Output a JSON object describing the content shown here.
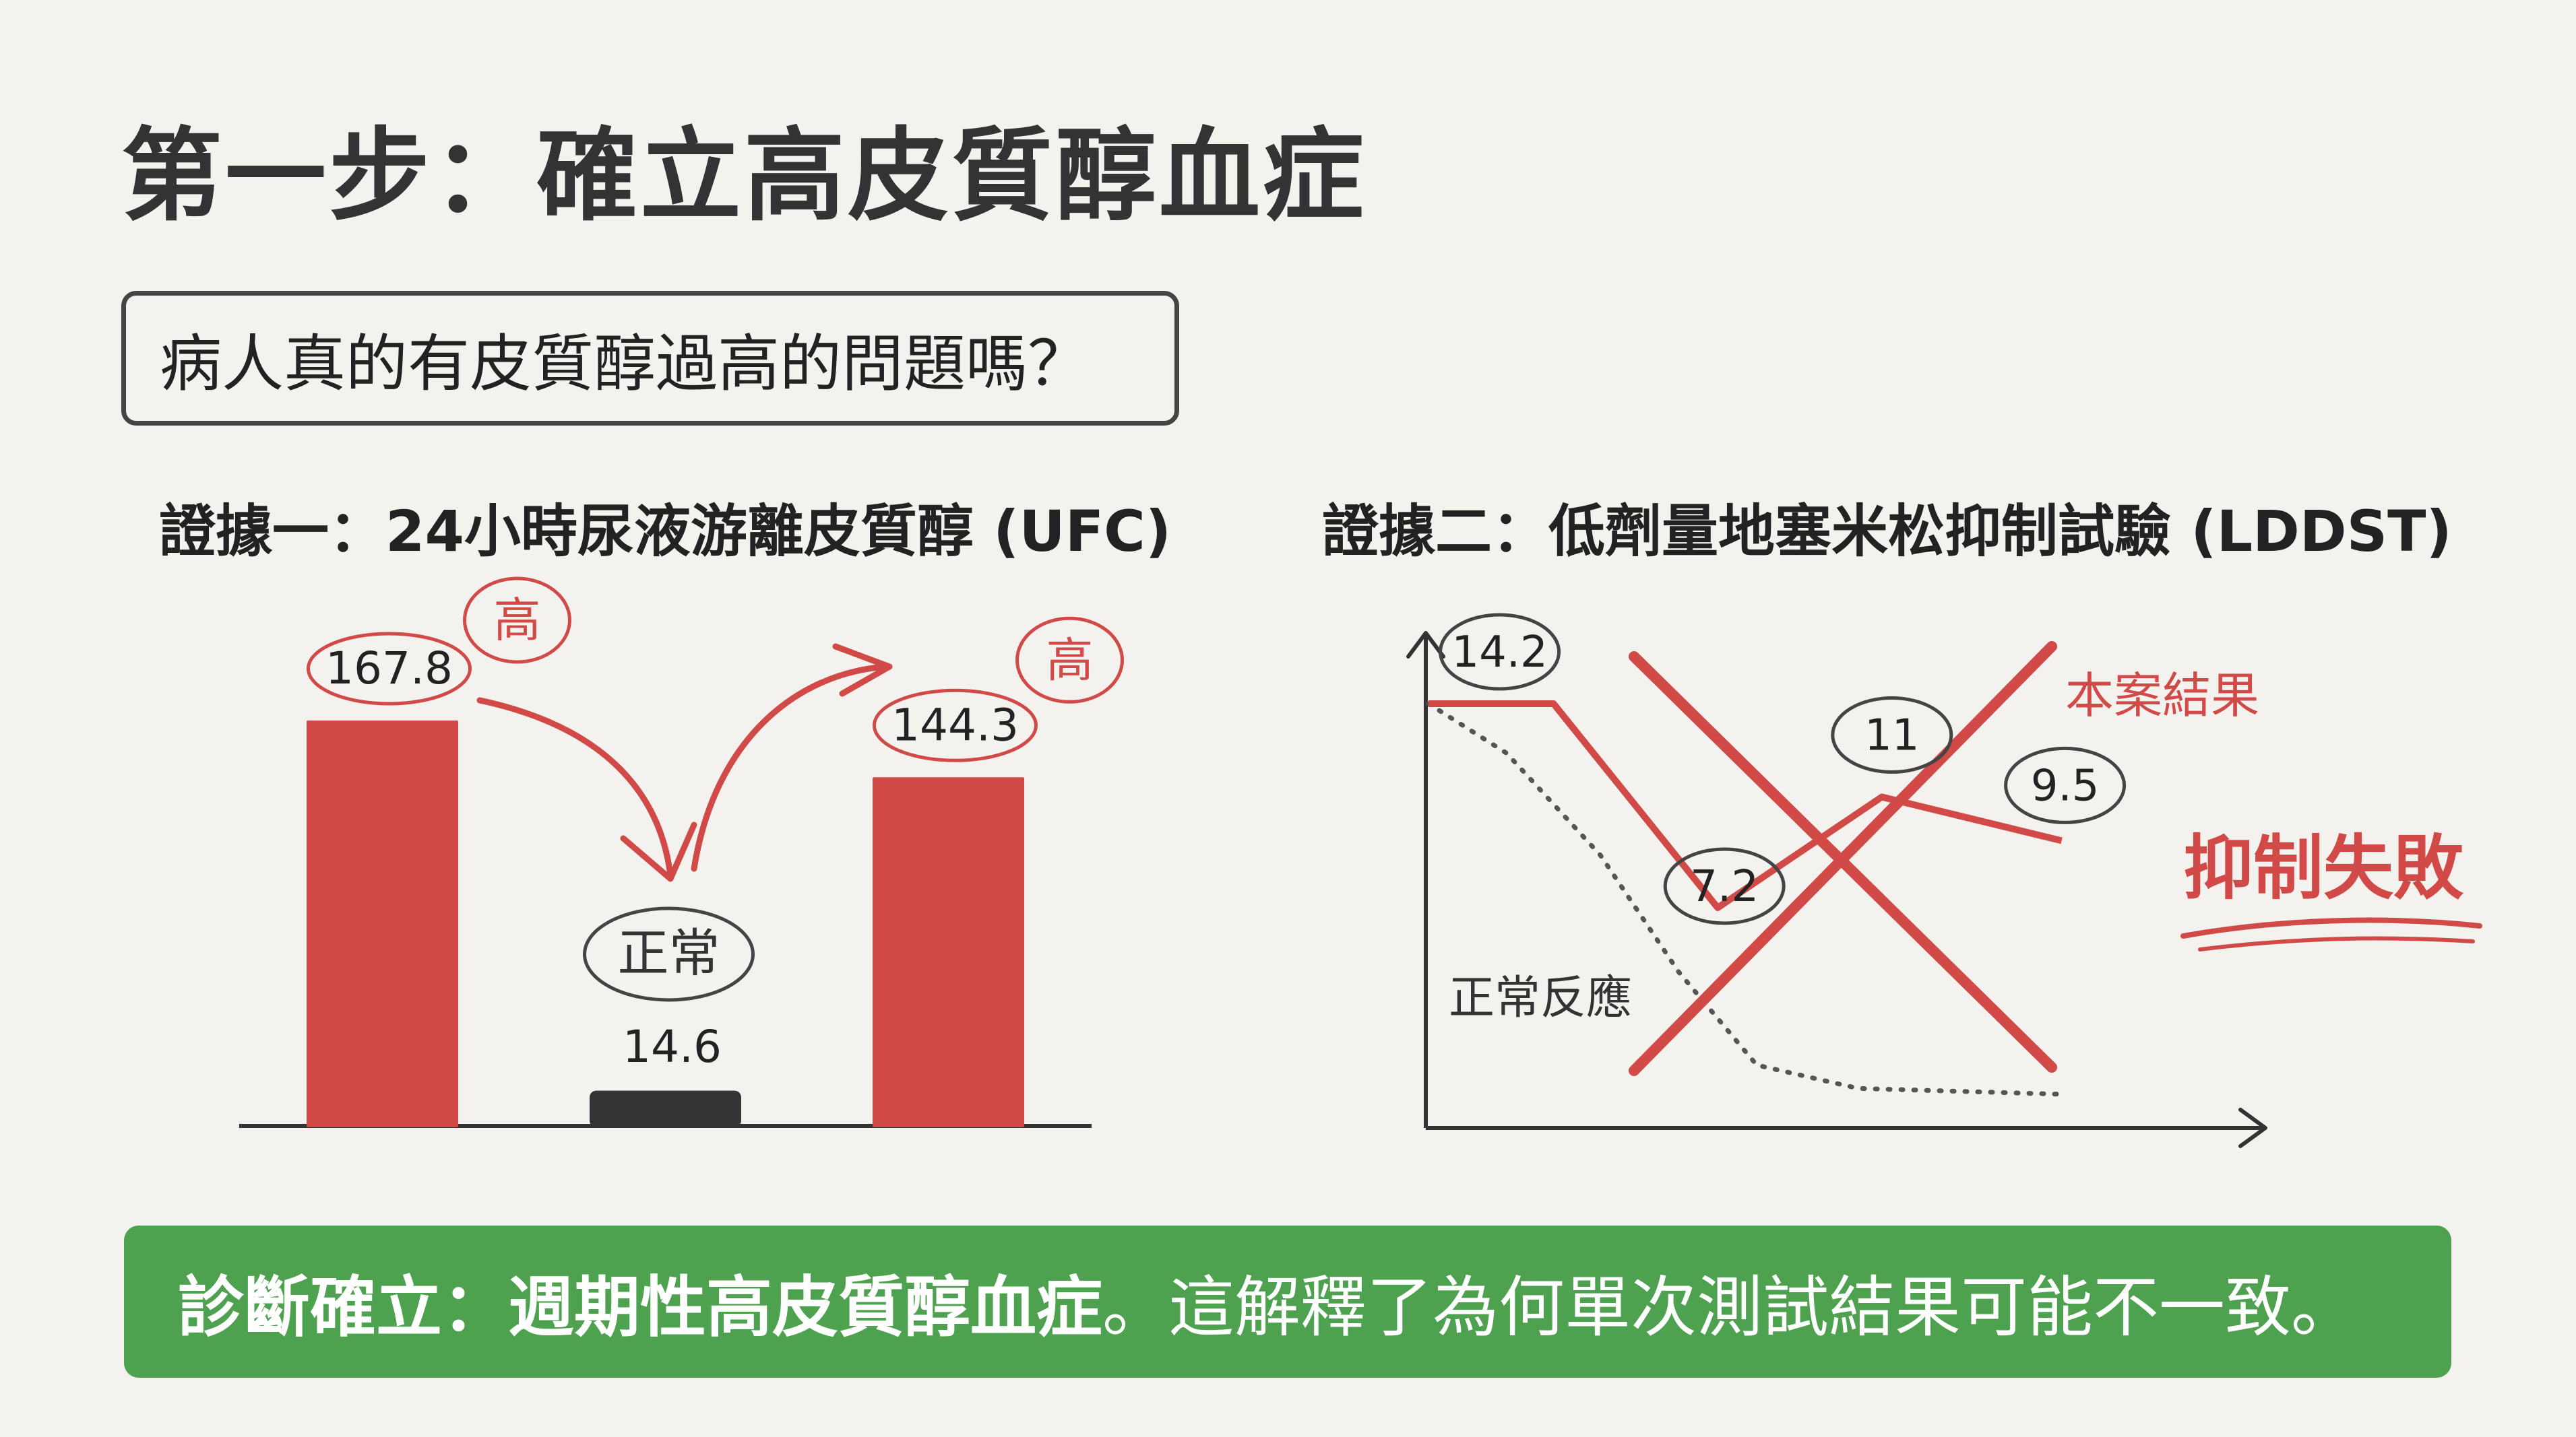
{
  "title": "第一步：確立高皮質醇血症",
  "question": "病人真的有皮質醇過高的問題嗎？",
  "evidence1": {
    "title": "證據一：24小時尿液游離皮質醇 (UFC)",
    "high_label": "高",
    "normal_label": "正常"
  },
  "evidence2": {
    "title": "證據二：低劑量地塞米松抑制試驗 (LDDST)",
    "case_label": "本案結果",
    "normal_label": "正常反應",
    "fail_label": "抑制失敗"
  },
  "conclusion": {
    "bold": "診斷確立：週期性高皮質醇血症",
    "rest": "。這解釋了為何單次測試結果可能不一致。"
  },
  "colors": {
    "red": "#d24a47",
    "dark": "#333333",
    "green": "#4ea24f"
  },
  "chart_data": [
    {
      "type": "bar",
      "title": "證據一：24小時尿液游離皮質醇 (UFC)",
      "categories": [
        "",
        "",
        ""
      ],
      "values": [
        167.8,
        14.6,
        144.3
      ],
      "value_labels": [
        "167.8",
        "14.6",
        "144.3"
      ],
      "annotations": [
        "高",
        "正常",
        "高"
      ],
      "bar_colors": [
        "#d24a47",
        "#333333",
        "#d24a47"
      ]
    },
    {
      "type": "line",
      "title": "證據二：低劑量地塞米松抑制試驗 (LDDST)",
      "series": [
        {
          "name": "本案結果",
          "style": "solid-red",
          "points": [
            [
              0,
              14.2
            ],
            [
              0.16,
              14.2
            ],
            [
              0.37,
              7.2
            ],
            [
              0.58,
              11
            ],
            [
              0.81,
              9.5
            ]
          ],
          "labels": [
            "14.2",
            "7.2",
            "11",
            "9.5"
          ]
        },
        {
          "name": "正常反應",
          "style": "dotted-gray",
          "points": [
            [
              0,
              14.2
            ],
            [
              0.1,
              12.5
            ],
            [
              0.22,
              9.0
            ],
            [
              0.32,
              5.0
            ],
            [
              0.42,
              1.8
            ],
            [
              0.55,
              1.0
            ],
            [
              0.81,
              0.8
            ]
          ]
        }
      ],
      "ylim": [
        0,
        16
      ],
      "annotation": "抑制失敗"
    }
  ]
}
